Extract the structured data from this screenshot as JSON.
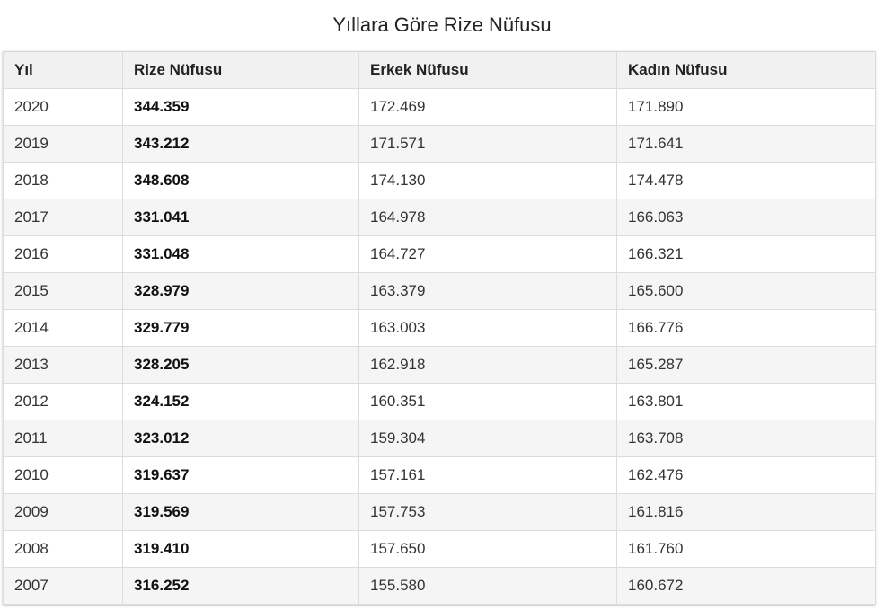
{
  "title": "Yıllara Göre Rize Nüfusu",
  "table": {
    "headers": [
      "Yıl",
      "Rize Nüfusu",
      "Erkek Nüfusu",
      "Kadın Nüfusu"
    ],
    "rows": [
      [
        "2020",
        "344.359",
        "172.469",
        "171.890"
      ],
      [
        "2019",
        "343.212",
        "171.571",
        "171.641"
      ],
      [
        "2018",
        "348.608",
        "174.130",
        "174.478"
      ],
      [
        "2017",
        "331.041",
        "164.978",
        "166.063"
      ],
      [
        "2016",
        "331.048",
        "164.727",
        "166.321"
      ],
      [
        "2015",
        "328.979",
        "163.379",
        "165.600"
      ],
      [
        "2014",
        "329.779",
        "163.003",
        "166.776"
      ],
      [
        "2013",
        "328.205",
        "162.918",
        "165.287"
      ],
      [
        "2012",
        "324.152",
        "160.351",
        "163.801"
      ],
      [
        "2011",
        "323.012",
        "159.304",
        "163.708"
      ],
      [
        "2010",
        "319.637",
        "157.161",
        "162.476"
      ],
      [
        "2009",
        "319.569",
        "157.753",
        "161.816"
      ],
      [
        "2008",
        "319.410",
        "157.650",
        "161.760"
      ],
      [
        "2007",
        "316.252",
        "155.580",
        "160.672"
      ]
    ]
  }
}
